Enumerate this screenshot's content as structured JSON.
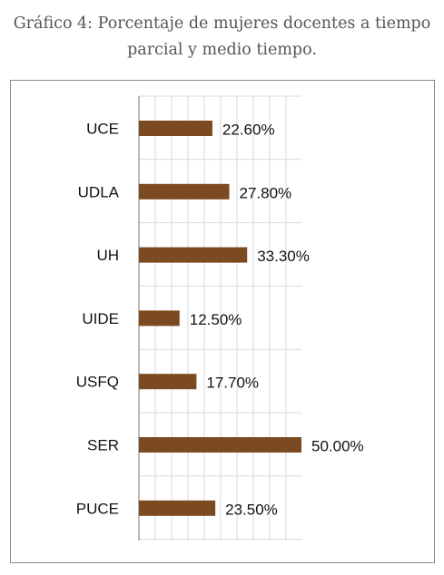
{
  "title_line1": "Gráfico 4: Porcentaje de mujeres docentes a tiempo",
  "title_line2": "parcial y medio tiempo.",
  "chart_data": {
    "type": "bar",
    "orientation": "horizontal",
    "categories": [
      "UCE",
      "UDLA",
      "UH",
      "UIDE",
      "USFQ",
      "SER",
      "PUCE"
    ],
    "values": [
      22.6,
      27.8,
      33.3,
      12.5,
      17.7,
      50.0,
      23.5
    ],
    "data_labels": [
      "22.60%",
      "27.80%",
      "33.30%",
      "12.50%",
      "17.70%",
      "50.00%",
      "23.50%"
    ],
    "xlim": [
      0,
      50
    ],
    "grid": true,
    "bar_color": "#7b4a20",
    "grid_color": "#d9d9d9",
    "axis_color": "#8c8c8c"
  }
}
